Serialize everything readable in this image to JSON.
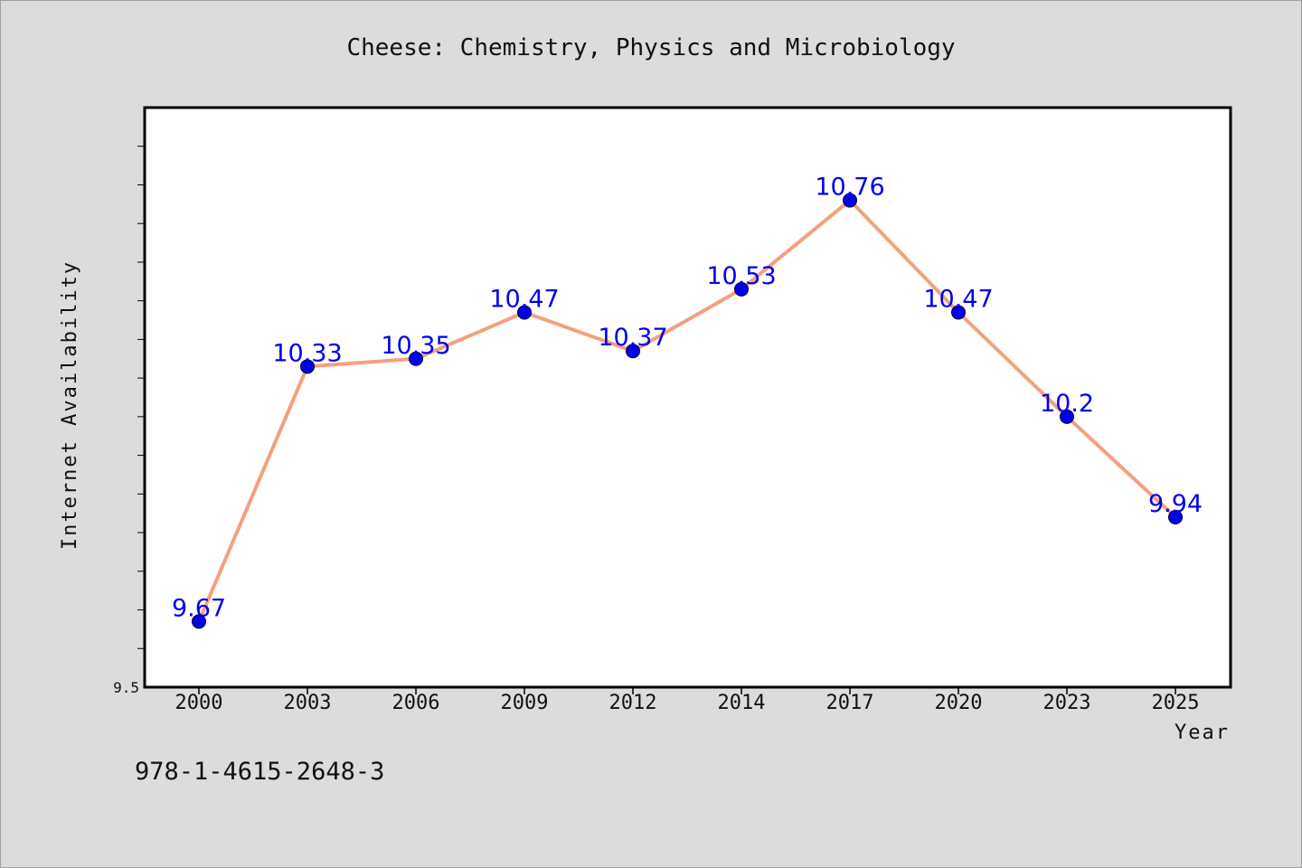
{
  "chart_data": {
    "type": "line",
    "title": "Cheese: Chemistry, Physics and Microbiology",
    "xlabel": "Year",
    "ylabel": "Internet Availability",
    "categories": [
      "2000",
      "2003",
      "2006",
      "2009",
      "2012",
      "2014",
      "2017",
      "2020",
      "2023",
      "2025"
    ],
    "values": [
      9.67,
      10.33,
      10.35,
      10.47,
      10.37,
      10.53,
      10.76,
      10.47,
      10.2,
      9.94
    ],
    "data_labels": [
      "9.67",
      "10.33",
      "10.35",
      "10.47",
      "10.37",
      "10.53",
      "10.76",
      "10.47",
      "10.2",
      "9.94"
    ],
    "ylim": [
      9.5,
      11.0
    ],
    "y_tick_labels": [
      "9.5"
    ],
    "grid": false,
    "legend": "none",
    "line_color": "#f4a07e",
    "marker_color": "#0000ee",
    "label_color": "#0000ee"
  },
  "footer_text": "978-1-4615-2648-3"
}
